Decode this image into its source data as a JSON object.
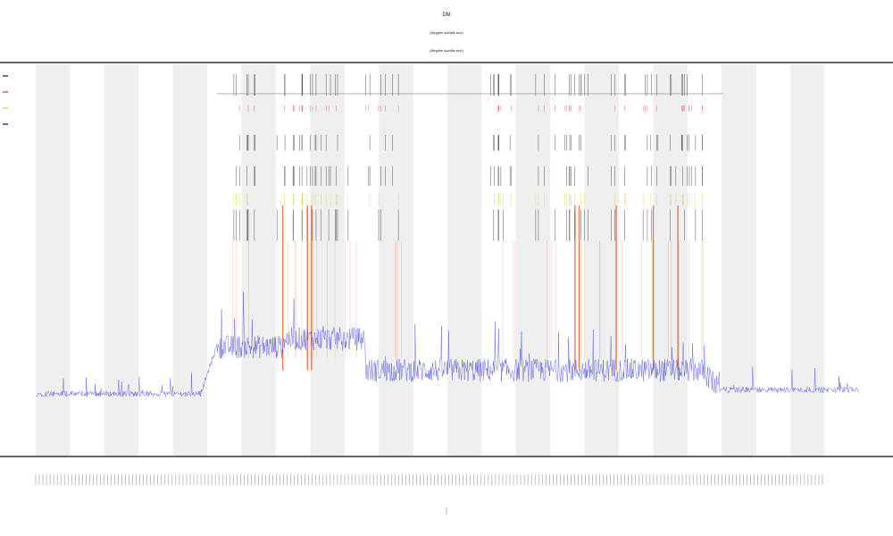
{
  "chart_data": {
    "type": "line",
    "title": "DM",
    "subtitle_1": "(Illegible subtitle text)",
    "subtitle_2": "(Illegible subtitle text)",
    "xlabel": "",
    "ylabel": "",
    "grid": "alternating vertical bands",
    "legend_position": "top-left",
    "band_count": 24,
    "colors": {
      "signal": "#3b3bd6",
      "orange_events": "#e0501e",
      "red_events": "#e23030",
      "yellow_events": "#d8c820",
      "black_events": "#111111",
      "band": "#efefef",
      "axis": "#333333"
    },
    "legend": [
      {
        "name": "",
        "color": "#111111"
      },
      {
        "name": "",
        "color": "#e23030"
      },
      {
        "name": "",
        "color": "#d8c820"
      },
      {
        "name": "",
        "color": "#111111"
      }
    ],
    "x_range": [
      0,
      1
    ],
    "y_range": [
      0,
      1
    ],
    "baseline_segments": [
      {
        "x": [
          0.0,
          0.2
        ],
        "level": 0.16
      },
      {
        "x": [
          0.2,
          0.3
        ],
        "level": 0.28
      },
      {
        "x": [
          0.3,
          0.4
        ],
        "level": 0.3
      },
      {
        "x": [
          0.4,
          0.83
        ],
        "level": 0.22
      },
      {
        "x": [
          0.83,
          1.0
        ],
        "level": 0.17
      }
    ],
    "event_clusters": [
      0.25,
      0.31,
      0.33,
      0.35,
      0.39,
      0.43,
      0.57,
      0.62,
      0.655,
      0.7,
      0.75,
      0.78,
      0.8
    ],
    "strong_events": [
      0.3,
      0.33,
      0.335,
      0.655,
      0.66,
      0.705,
      0.75,
      0.78
    ]
  }
}
